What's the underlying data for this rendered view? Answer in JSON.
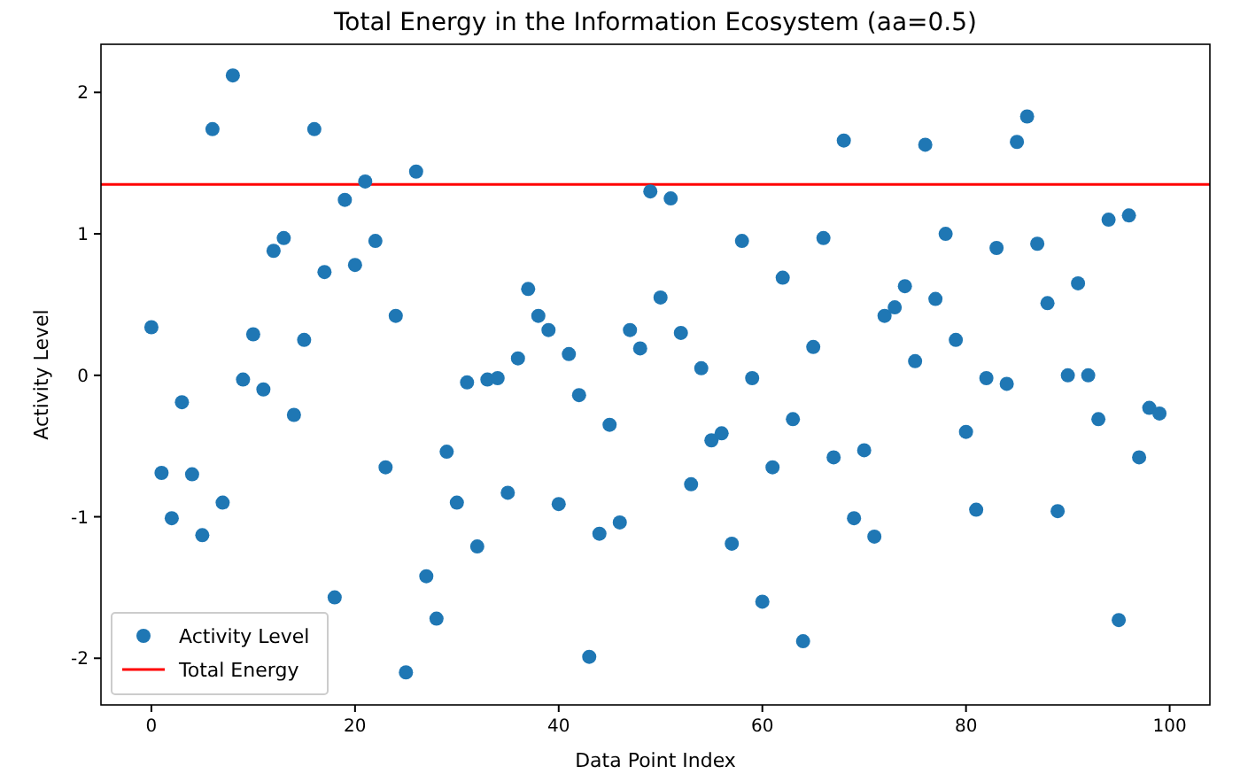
{
  "chart_data": {
    "type": "scatter",
    "title": "Total Energy in the Information Ecosystem (aa=0.5)",
    "xlabel": "Data Point Index",
    "ylabel": "Activity Level",
    "x": [
      0,
      1,
      2,
      3,
      4,
      5,
      6,
      7,
      8,
      9,
      10,
      11,
      12,
      13,
      14,
      15,
      16,
      17,
      18,
      19,
      20,
      21,
      22,
      23,
      24,
      25,
      26,
      27,
      28,
      29,
      30,
      31,
      32,
      33,
      34,
      35,
      36,
      37,
      38,
      39,
      40,
      41,
      42,
      43,
      44,
      45,
      46,
      47,
      48,
      49,
      50,
      51,
      52,
      53,
      54,
      55,
      56,
      57,
      58,
      59,
      60,
      61,
      62,
      63,
      64,
      65,
      66,
      67,
      68,
      69,
      70,
      71,
      72,
      73,
      74,
      75,
      76,
      77,
      78,
      79,
      80,
      81,
      82,
      83,
      84,
      85,
      86,
      87,
      88,
      89,
      90,
      91,
      92,
      93,
      94,
      95,
      96,
      97,
      98,
      99
    ],
    "series": [
      {
        "name": "Activity Level",
        "color": "#1f77b4",
        "values": [
          0.34,
          -0.69,
          -1.01,
          -0.19,
          -0.7,
          -1.13,
          1.74,
          -0.9,
          2.12,
          -0.03,
          0.29,
          -0.1,
          0.88,
          0.97,
          -0.28,
          0.25,
          1.74,
          0.73,
          -1.57,
          1.24,
          0.78,
          1.37,
          0.95,
          -0.65,
          0.42,
          -2.1,
          1.44,
          -1.42,
          -1.72,
          -0.54,
          -0.9,
          -0.05,
          -1.21,
          -0.03,
          -0.02,
          -0.83,
          0.12,
          0.61,
          0.42,
          0.32,
          -0.91,
          0.15,
          -0.14,
          -1.99,
          -1.12,
          -0.35,
          -1.04,
          0.32,
          0.19,
          1.3,
          0.55,
          1.25,
          0.3,
          -0.77,
          0.05,
          -0.46,
          -0.41,
          -1.19,
          0.95,
          -0.02,
          -1.6,
          -0.65,
          0.69,
          -0.31,
          -1.88,
          0.2,
          0.97,
          -0.58,
          1.66,
          -1.01,
          -0.53,
          -1.14,
          0.42,
          0.48,
          0.63,
          0.1,
          1.63,
          0.54,
          1.0,
          0.25,
          -0.4,
          -0.95,
          -0.02,
          0.9,
          -0.06,
          1.65,
          1.83,
          0.93,
          0.51,
          -0.96,
          0.0,
          0.65,
          0.0,
          -0.31,
          1.1,
          -1.73,
          1.13,
          -0.58,
          -0.23,
          -0.27
        ]
      }
    ],
    "ref_lines": [
      {
        "axis": "y",
        "value": 1.35,
        "label": "Total Energy",
        "color": "#ff0000"
      }
    ],
    "xlim": [
      -4.95,
      103.95
    ],
    "ylim": [
      -2.33,
      2.34
    ],
    "xticks": [
      0,
      20,
      40,
      60,
      80,
      100
    ],
    "yticks": [
      -2,
      -1,
      0,
      1,
      2
    ],
    "marker": "circle",
    "legend": "bottom left",
    "grid": false
  }
}
